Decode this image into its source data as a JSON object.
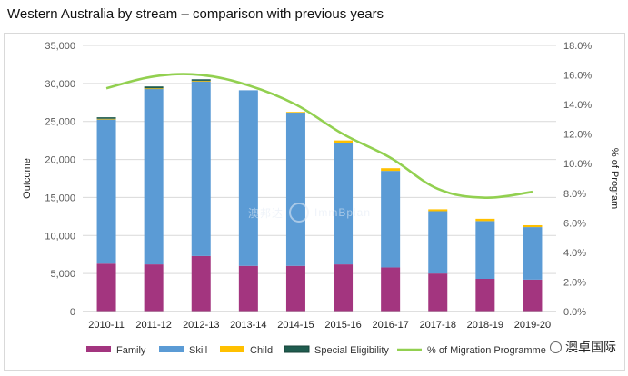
{
  "title": "Western Australia by stream – comparison with previous years",
  "watermark": {
    "line1": "澳邦达",
    "line2": "ImmBpian"
  },
  "wechat": {
    "name": "澳卓国际",
    "icon": "wechat-icon"
  },
  "colors": {
    "family": "#a3357f",
    "skill": "#5b9bd5",
    "child": "#ffc000",
    "special": "#1f5c4f",
    "pct": "#92d050",
    "grid": "#d9d9d9",
    "axis_text": "#595959"
  },
  "chart_data": {
    "type": "bar",
    "stacked": true,
    "categories": [
      "2010-11",
      "2011-12",
      "2012-13",
      "2013-14",
      "2014-15",
      "2015-16",
      "2016-17",
      "2017-18",
      "2018-19",
      "2019-20"
    ],
    "series": [
      {
        "name": "Family",
        "values": [
          6300,
          6200,
          7300,
          6000,
          6000,
          6200,
          5800,
          5000,
          4300,
          4200
        ]
      },
      {
        "name": "Skill",
        "values": [
          19000,
          23100,
          23000,
          23100,
          20200,
          15900,
          12700,
          8200,
          7600,
          6900
        ]
      },
      {
        "name": "Child",
        "values": [
          50,
          50,
          50,
          0,
          50,
          400,
          350,
          250,
          300,
          250
        ]
      },
      {
        "name": "Special Eligibility",
        "values": [
          200,
          250,
          200,
          0,
          0,
          0,
          0,
          0,
          0,
          0
        ]
      }
    ],
    "line_series": {
      "name": "% of Migration Programme",
      "values": [
        15.1,
        15.9,
        16.0,
        15.3,
        14.0,
        12.0,
        10.4,
        8.3,
        7.7,
        8.1
      ]
    },
    "ylabel": "Outcome",
    "y2label": "% of Program",
    "ylim": [
      0,
      35000
    ],
    "y2lim": [
      0,
      18
    ],
    "yticks": [
      "0",
      "5,000",
      "10,000",
      "15,000",
      "20,000",
      "25,000",
      "30,000",
      "35,000"
    ],
    "y2ticks": [
      "0.0%",
      "2.0%",
      "4.0%",
      "6.0%",
      "8.0%",
      "10.0%",
      "12.0%",
      "14.0%",
      "16.0%",
      "18.0%"
    ],
    "legend": [
      "Family",
      "Skill",
      "Child",
      "Special Eligibility",
      "% of Migration Programme"
    ],
    "legend_position": "bottom",
    "grid": true
  }
}
